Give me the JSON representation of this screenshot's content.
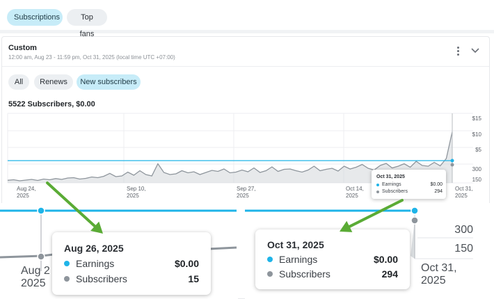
{
  "filter_chips": [
    {
      "label": "Subscriptions",
      "active": true
    },
    {
      "label": "Top fans",
      "active": false
    }
  ],
  "header": {
    "title": "Custom",
    "subtitle": "12:00 am, Aug 23 - 11:59 pm, Oct 31, 2025 (local time UTC +07:00)",
    "menu_icon": "more-vertical-icon",
    "collapse_icon": "chevron-down-icon"
  },
  "sub_chips": [
    {
      "label": "All",
      "active": false
    },
    {
      "label": "Renews",
      "active": false
    },
    {
      "label": "New subscribers",
      "active": true
    }
  ],
  "summary": "5522 Subscribers, $0.00",
  "colors": {
    "earnings": "#1fb4e8",
    "subscribers": "#8e959c",
    "subscribers_fill": "#d3d7db",
    "accent_chip": "#c7ecf8",
    "annotation_arrow": "#5aab35"
  },
  "chart_data": {
    "type": "line",
    "x_ticks": [
      {
        "line1": "Aug 24,",
        "line2": "2025"
      },
      {
        "line1": "Sep 10,",
        "line2": "2025"
      },
      {
        "line1": "Sep 27,",
        "line2": "2025"
      },
      {
        "line1": "Oct 14,",
        "line2": "2025"
      },
      {
        "line1": "Oct 31,",
        "line2": "2025"
      }
    ],
    "y_ticks_earnings": [
      "$15",
      "$10",
      "$5"
    ],
    "y_ticks_subscribers": [
      "300",
      "150"
    ],
    "series": [
      {
        "name": "Earnings",
        "values_note": "constant",
        "value": 0
      },
      {
        "name": "Subscribers",
        "values": [
          15,
          18,
          12,
          16,
          20,
          14,
          22,
          18,
          25,
          20,
          28,
          30,
          22,
          26,
          34,
          30,
          38,
          55,
          36,
          40,
          62,
          44,
          70,
          48,
          40,
          110,
          60,
          48,
          52,
          70,
          58,
          64,
          48,
          60,
          72,
          66,
          80,
          58,
          62,
          74,
          64,
          86,
          60,
          70,
          92,
          66,
          78,
          80,
          70,
          62,
          74,
          96,
          70,
          78,
          84,
          68,
          96,
          80,
          90,
          106,
          84,
          74,
          100,
          112,
          86,
          96,
          110,
          90,
          124,
          100,
          96,
          118,
          98,
          140,
          294
        ]
      }
    ]
  },
  "tooltip_main": {
    "date": "Oct 31, 2025",
    "rows": [
      {
        "label": "Earnings",
        "value": "$0.00"
      },
      {
        "label": "Subscribers",
        "value": "294"
      }
    ]
  },
  "zoom_left": {
    "tooltip": {
      "date": "Aug 26, 2025",
      "rows": [
        {
          "label": "Earnings",
          "value": "$0.00"
        },
        {
          "label": "Subscribers",
          "value": "15"
        }
      ]
    },
    "axis_label": {
      "line1": "Aug 2",
      "line2": "2025"
    }
  },
  "zoom_right": {
    "tooltip": {
      "date": "Oct 31, 2025",
      "rows": [
        {
          "label": "Earnings",
          "value": "$0.00"
        },
        {
          "label": "Subscribers",
          "value": "294"
        }
      ]
    },
    "axis_label": {
      "line1": "Oct 31,",
      "line2": "2025"
    },
    "y_ticks": [
      "300",
      "150"
    ]
  }
}
